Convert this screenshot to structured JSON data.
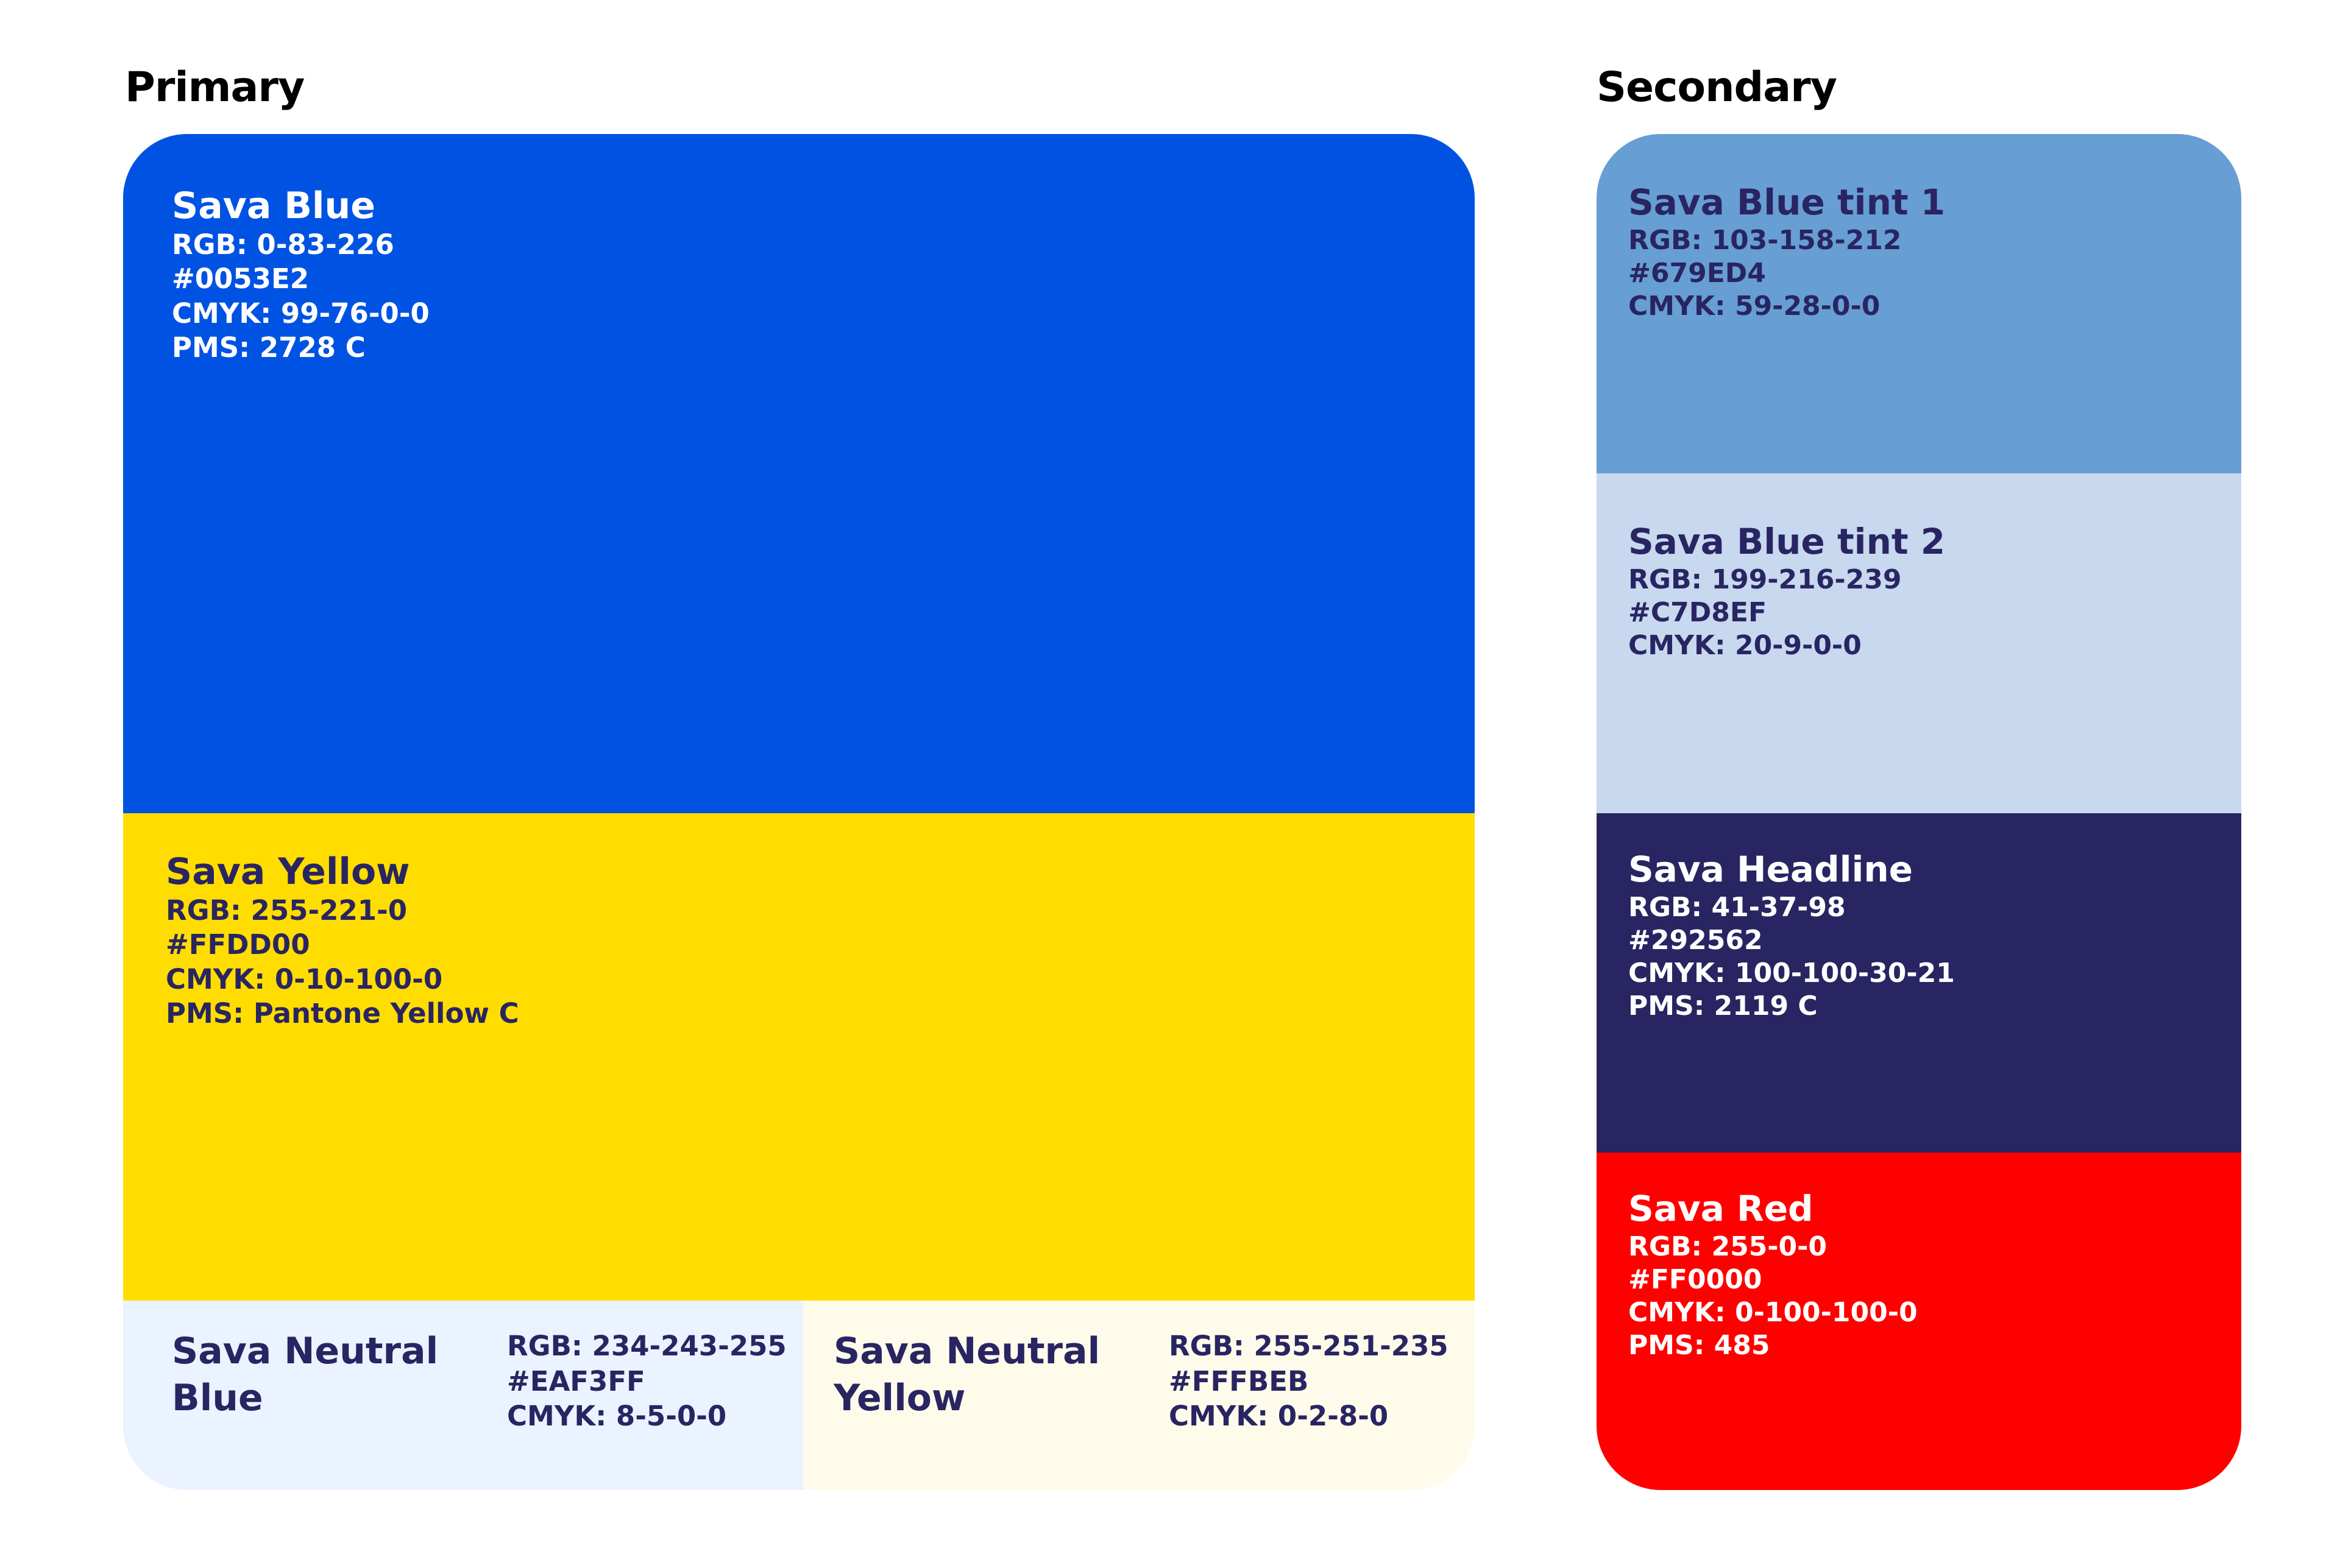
{
  "sections": {
    "primary": "Primary",
    "secondary": "Secondary"
  },
  "primary": {
    "blue": {
      "name": "Sava Blue",
      "rgb": "RGB: 0-83-226",
      "hex": "#0053E2",
      "cmyk": "CMYK: 99-76-0-0",
      "pms": "PMS: 2728 C",
      "color": "#0053E2",
      "text_color": "#FFFFFF"
    },
    "yellow": {
      "name": "Sava Yellow",
      "rgb": "RGB: 255-221-0",
      "hex": "#FFDD00",
      "cmyk": "CMYK: 0-10-100-0",
      "pms": "PMS: Pantone Yellow C",
      "color": "#FFDD00",
      "text_color": "#292562"
    },
    "neutral_blue": {
      "name_line1": "Sava Neutral",
      "name_line2": "Blue",
      "rgb": "RGB: 234-243-255",
      "hex": "#EAF3FF",
      "cmyk": "CMYK: 8-5-0-0",
      "color": "#EAF3FF",
      "text_color": "#292562"
    },
    "neutral_yellow": {
      "name_line1": "Sava Neutral",
      "name_line2": "Yellow",
      "rgb": "RGB: 255-251-235",
      "hex": "#FFFBEB",
      "cmyk": "CMYK: 0-2-8-0",
      "color": "#FFFBEB",
      "text_color": "#292562"
    }
  },
  "secondary": {
    "blue_tint_1": {
      "name": "Sava Blue tint 1",
      "rgb": "RGB: 103-158-212",
      "hex": "#679ED4",
      "cmyk": "CMYK: 59-28-0-0",
      "color": "#679ED4",
      "text_color": "#292562"
    },
    "blue_tint_2": {
      "name": "Sava Blue tint 2",
      "rgb": "RGB: 199-216-239",
      "hex": "#C7D8EF",
      "cmyk": "CMYK: 20-9-0-0",
      "color": "#C7D8EF",
      "text_color": "#292562"
    },
    "headline": {
      "name": "Sava Headline",
      "rgb": "RGB: 41-37-98",
      "hex": "#292562",
      "cmyk": "CMYK: 100-100-30-21",
      "pms": "PMS: 2119 C",
      "color": "#292562",
      "text_color": "#FFFFFF"
    },
    "red": {
      "name": "Sava Red",
      "rgb": "RGB: 255-0-0",
      "hex": "#FF0000",
      "cmyk": "CMYK: 0-100-100-0",
      "pms": "PMS: 485",
      "color": "#FF0000",
      "text_color": "#FFFFFF"
    }
  }
}
